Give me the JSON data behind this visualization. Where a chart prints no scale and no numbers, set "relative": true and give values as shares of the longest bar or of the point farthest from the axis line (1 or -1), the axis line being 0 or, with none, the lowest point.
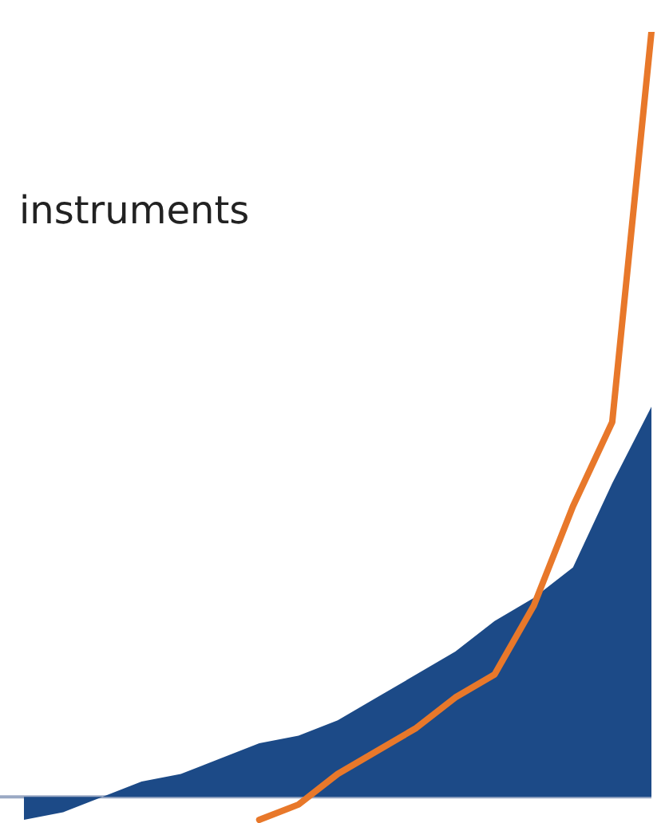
{
  "chart_data": {
    "type": "area",
    "title": "instruments",
    "relative": true,
    "legend": false,
    "tick_labels": false,
    "marker": "none",
    "categories": [
      null,
      null,
      null,
      null,
      null,
      null,
      null,
      null,
      null,
      null,
      null,
      null,
      null,
      null,
      null,
      null,
      null
    ],
    "ref_lines": [
      {
        "axis": "y",
        "value": 0,
        "color": "#9aa9c4"
      }
    ],
    "series": [
      {
        "color": "#1c4a87",
        "values": [
          -0.03,
          -0.02,
          0,
          0.02,
          0.03,
          0.05,
          0.07,
          0.08,
          0.1,
          0.13,
          0.16,
          0.19,
          0.23,
          0.26,
          0.3,
          0.41,
          0.51
        ]
      },
      {
        "type": "line",
        "color": "#e8782a",
        "values": [
          null,
          null,
          null,
          null,
          null,
          null,
          -0.03,
          -0.01,
          0.03,
          0.06,
          0.09,
          0.13,
          0.16,
          0.25,
          0.38,
          0.49,
          1
        ]
      }
    ]
  }
}
